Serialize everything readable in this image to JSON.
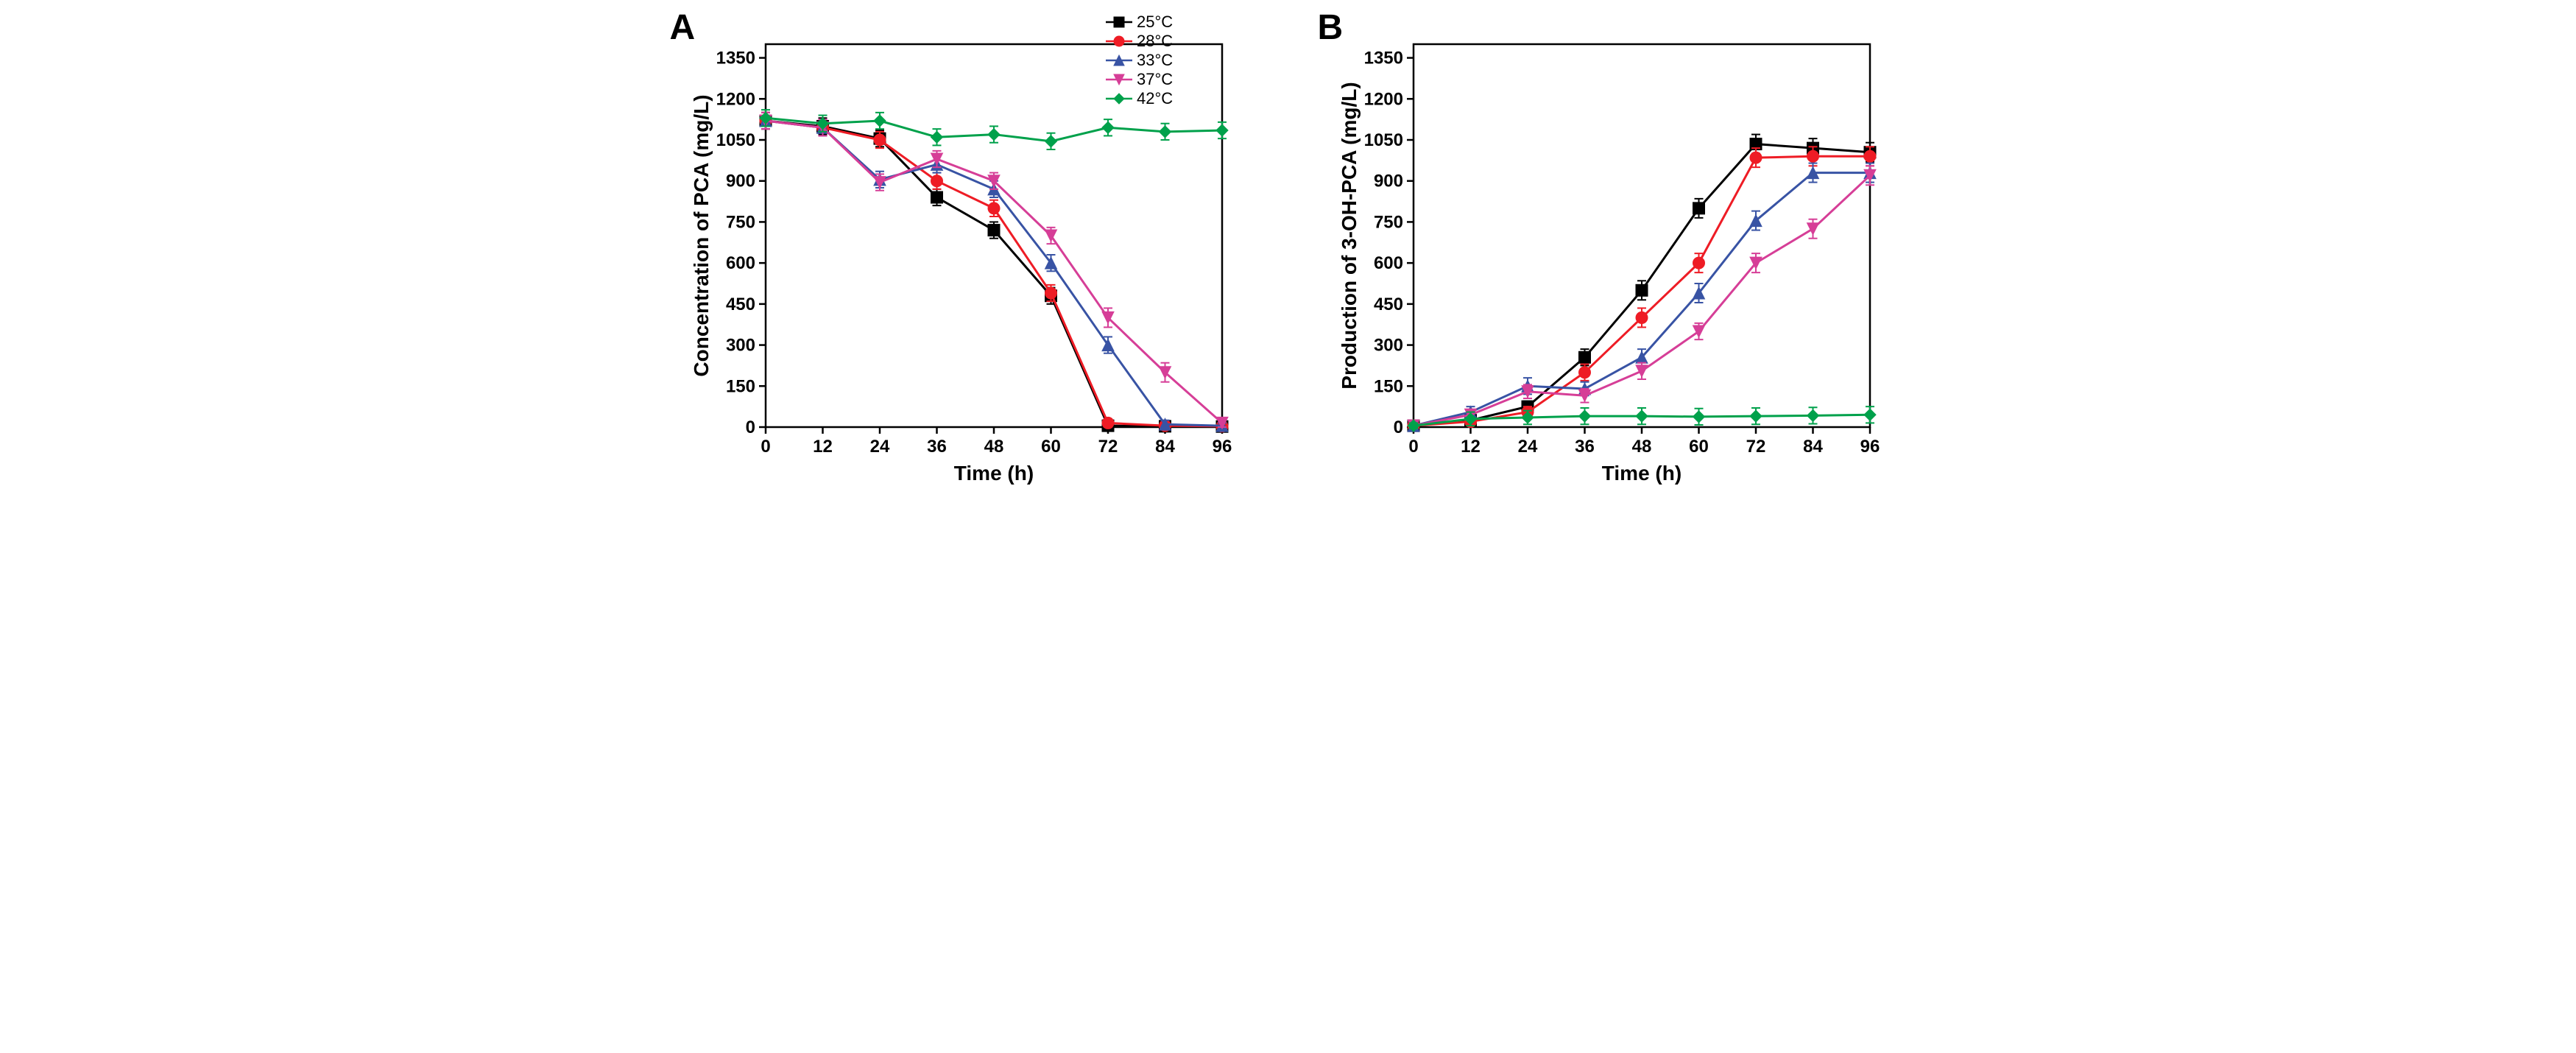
{
  "panelA": {
    "label": "A",
    "type": "line",
    "title": "",
    "xlabel": "Time (h)",
    "ylabel": "Concentration of PCA (mg/L)",
    "label_fontsize": 28,
    "tick_fontsize": 24,
    "xlim": [
      0,
      96
    ],
    "ylim": [
      0,
      1400
    ],
    "xticks": [
      0,
      12,
      24,
      36,
      48,
      60,
      72,
      84,
      96
    ],
    "yticks": [
      0,
      150,
      300,
      450,
      600,
      750,
      900,
      1050,
      1200,
      1350
    ],
    "line_width": 3,
    "marker_size": 8,
    "error_cap": 6,
    "background_color": "#ffffff",
    "axis_color": "#000000",
    "series": [
      {
        "name": "25°C",
        "color": "#000000",
        "marker": "square",
        "x": [
          0,
          12,
          24,
          36,
          48,
          60,
          72,
          84,
          96
        ],
        "y": [
          1120,
          1100,
          1055,
          840,
          720,
          480,
          5,
          3,
          2
        ],
        "err": [
          30,
          30,
          30,
          30,
          30,
          30,
          10,
          10,
          10
        ]
      },
      {
        "name": "28°C",
        "color": "#ee1c25",
        "marker": "circle",
        "x": [
          0,
          12,
          24,
          36,
          48,
          60,
          72,
          84,
          96
        ],
        "y": [
          1120,
          1095,
          1050,
          900,
          800,
          490,
          15,
          5,
          3
        ],
        "err": [
          30,
          30,
          30,
          30,
          30,
          30,
          15,
          10,
          10
        ]
      },
      {
        "name": "33°C",
        "color": "#3853a4",
        "marker": "triangle",
        "x": [
          0,
          12,
          24,
          36,
          48,
          60,
          72,
          84,
          96
        ],
        "y": [
          1120,
          1095,
          905,
          960,
          870,
          600,
          300,
          10,
          5
        ],
        "err": [
          30,
          30,
          30,
          30,
          30,
          30,
          30,
          15,
          10
        ]
      },
      {
        "name": "37°C",
        "color": "#d63e97",
        "marker": "invtriangle",
        "x": [
          0,
          12,
          24,
          36,
          48,
          60,
          72,
          84,
          96
        ],
        "y": [
          1120,
          1095,
          895,
          980,
          900,
          700,
          400,
          200,
          15
        ],
        "err": [
          30,
          30,
          30,
          30,
          30,
          30,
          35,
          35,
          15
        ]
      },
      {
        "name": "42°C",
        "color": "#00a14b",
        "marker": "diamond",
        "x": [
          0,
          12,
          24,
          36,
          48,
          60,
          72,
          84,
          96
        ],
        "y": [
          1130,
          1110,
          1120,
          1060,
          1070,
          1045,
          1095,
          1080,
          1085
        ],
        "err": [
          30,
          30,
          30,
          30,
          30,
          30,
          30,
          30,
          30
        ]
      }
    ],
    "legend": {
      "show": true,
      "position": "top-right",
      "fontsize": 22
    }
  },
  "panelB": {
    "label": "B",
    "type": "line",
    "title": "",
    "xlabel": "Time (h)",
    "ylabel": "Production of 3-OH-PCA (mg/L)",
    "label_fontsize": 28,
    "tick_fontsize": 24,
    "xlim": [
      0,
      96
    ],
    "ylim": [
      0,
      1400
    ],
    "xticks": [
      0,
      12,
      24,
      36,
      48,
      60,
      72,
      84,
      96
    ],
    "yticks": [
      0,
      150,
      300,
      450,
      600,
      750,
      900,
      1050,
      1200,
      1350
    ],
    "line_width": 3,
    "marker_size": 8,
    "error_cap": 6,
    "background_color": "#ffffff",
    "axis_color": "#000000",
    "series": [
      {
        "name": "25°C",
        "color": "#000000",
        "marker": "square",
        "x": [
          0,
          12,
          24,
          36,
          48,
          60,
          72,
          84,
          96
        ],
        "y": [
          5,
          25,
          75,
          255,
          500,
          800,
          1035,
          1020,
          1005
        ],
        "err": [
          10,
          15,
          20,
          30,
          35,
          35,
          35,
          35,
          35
        ]
      },
      {
        "name": "28°C",
        "color": "#ee1c25",
        "marker": "circle",
        "x": [
          0,
          12,
          24,
          36,
          48,
          60,
          72,
          84,
          96
        ],
        "y": [
          5,
          20,
          55,
          200,
          400,
          600,
          985,
          990,
          990
        ],
        "err": [
          10,
          15,
          20,
          30,
          35,
          35,
          35,
          35,
          35
        ]
      },
      {
        "name": "33°C",
        "color": "#3853a4",
        "marker": "triangle",
        "x": [
          0,
          12,
          24,
          36,
          48,
          60,
          72,
          84,
          96
        ],
        "y": [
          5,
          55,
          150,
          140,
          255,
          490,
          755,
          930,
          930
        ],
        "err": [
          10,
          20,
          30,
          25,
          30,
          35,
          35,
          35,
          35
        ]
      },
      {
        "name": "37°C",
        "color": "#d63e97",
        "marker": "invtriangle",
        "x": [
          0,
          12,
          24,
          36,
          48,
          60,
          72,
          84,
          96
        ],
        "y": [
          5,
          45,
          130,
          115,
          205,
          350,
          600,
          725,
          920
        ],
        "err": [
          10,
          20,
          25,
          25,
          30,
          30,
          35,
          35,
          35
        ]
      },
      {
        "name": "42°C",
        "color": "#00a14b",
        "marker": "diamond",
        "x": [
          0,
          12,
          24,
          36,
          48,
          60,
          72,
          84,
          96
        ],
        "y": [
          5,
          30,
          35,
          40,
          40,
          38,
          40,
          42,
          45
        ],
        "err": [
          10,
          25,
          25,
          30,
          30,
          30,
          30,
          30,
          30
        ]
      }
    ],
    "legend": {
      "show": false
    }
  }
}
